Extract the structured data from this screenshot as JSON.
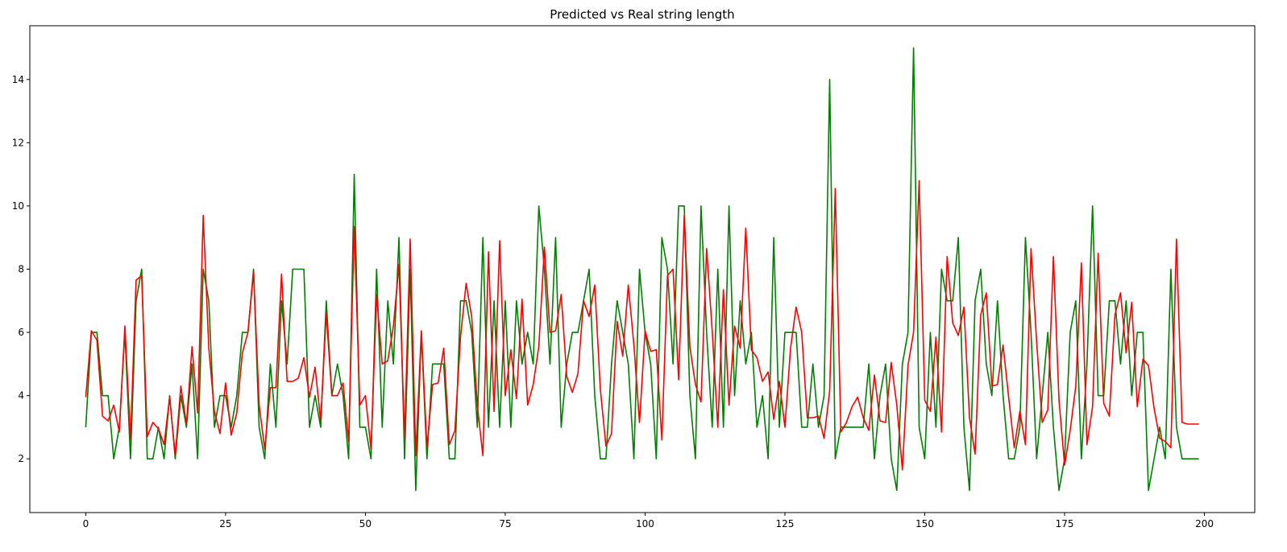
{
  "chart_data": {
    "type": "line",
    "title": "Predicted vs Real string length",
    "xlabel": "",
    "ylabel": "",
    "xlim": [
      -10,
      209
    ],
    "ylim": [
      0.3,
      15.7
    ],
    "xticks": [
      0,
      25,
      50,
      75,
      100,
      125,
      150,
      175,
      200
    ],
    "yticks": [
      2,
      4,
      6,
      8,
      10,
      12,
      14
    ],
    "grid": false,
    "legend": "none",
    "series": [
      {
        "color": "#008000",
        "values": [
          3,
          6,
          6,
          4,
          4,
          2,
          3,
          6,
          2,
          7,
          8,
          2,
          2,
          3,
          2,
          4,
          2,
          4,
          3,
          5,
          2,
          8,
          7,
          3,
          4,
          4,
          3,
          4,
          6,
          6,
          8,
          3,
          2,
          5,
          3,
          7,
          5,
          8,
          8,
          8,
          3,
          4,
          3,
          7,
          4,
          5,
          4,
          2,
          11,
          3,
          3,
          2,
          8,
          3,
          7,
          5,
          9,
          2,
          8,
          1,
          6,
          2,
          5,
          5,
          5,
          2,
          2,
          7,
          7,
          6,
          3,
          9,
          3,
          7,
          3,
          7,
          3,
          7,
          5,
          6,
          5,
          10,
          8,
          5,
          9,
          3,
          5,
          6,
          6,
          7,
          8,
          4,
          2,
          2,
          5,
          7,
          6,
          5,
          2,
          8,
          6,
          5,
          2,
          9,
          8,
          5,
          10,
          10,
          4,
          2,
          10,
          6,
          3,
          8,
          3,
          10,
          4,
          7,
          5,
          6,
          3,
          4,
          2,
          9,
          3,
          6,
          6,
          6,
          3,
          3,
          5,
          3,
          4,
          14,
          2,
          3,
          3,
          3,
          3,
          3,
          5,
          2,
          4,
          5,
          2,
          1,
          5,
          6,
          15,
          3,
          2,
          6,
          3,
          8,
          7,
          7,
          9,
          3,
          1,
          7,
          8,
          5,
          4,
          7,
          4,
          2,
          2,
          3,
          9,
          6,
          2,
          4,
          6,
          3,
          1,
          2,
          6,
          7,
          2,
          5,
          10,
          4,
          4,
          7,
          7,
          5,
          7,
          4,
          6,
          6,
          1,
          2,
          3,
          2,
          8,
          3,
          2,
          2,
          2,
          2
        ]
      },
      {
        "color": "#ff0000",
        "values": [
          3.95,
          6.05,
          5.75,
          3.35,
          3.2,
          3.7,
          2.85,
          6.2,
          2.6,
          7.65,
          7.8,
          2.7,
          3.15,
          2.95,
          2.45,
          3.95,
          2.1,
          4.3,
          3.1,
          5.55,
          3.45,
          9.7,
          5.5,
          3.5,
          2.8,
          4.4,
          2.75,
          3.45,
          5.35,
          6.0,
          7.9,
          3.7,
          2.3,
          4.25,
          4.25,
          7.85,
          4.45,
          4.45,
          4.55,
          5.2,
          3.95,
          4.9,
          3.2,
          6.6,
          4.0,
          4.0,
          4.4,
          2.55,
          9.35,
          3.7,
          4.0,
          2.3,
          7.2,
          5.0,
          5.1,
          6.2,
          8.15,
          2.65,
          8.95,
          2.1,
          6.05,
          2.35,
          4.35,
          4.4,
          5.5,
          2.45,
          2.9,
          5.85,
          7.55,
          6.5,
          3.7,
          2.1,
          8.55,
          3.5,
          8.9,
          4.0,
          5.45,
          3.9,
          7.05,
          3.7,
          4.35,
          5.55,
          8.7,
          6.0,
          6.05,
          7.2,
          4.6,
          4.1,
          4.7,
          7.0,
          6.5,
          7.5,
          4.2,
          2.4,
          2.8,
          6.35,
          5.25,
          7.5,
          5.6,
          3.15,
          6.05,
          5.4,
          5.45,
          2.6,
          7.8,
          8.0,
          4.5,
          9.7,
          5.55,
          4.35,
          3.8,
          8.65,
          6.05,
          3.0,
          7.35,
          3.7,
          6.2,
          5.5,
          9.3,
          5.45,
          5.2,
          4.45,
          4.75,
          3.25,
          4.45,
          3.0,
          5.5,
          6.8,
          6.0,
          3.3,
          3.3,
          3.35,
          2.65,
          4.15,
          10.55,
          2.85,
          3.15,
          3.65,
          3.95,
          3.3,
          2.9,
          4.65,
          3.2,
          3.15,
          5.05,
          3.7,
          1.65,
          4.95,
          6.0,
          10.8,
          3.85,
          3.5,
          5.85,
          2.85,
          8.4,
          6.3,
          5.9,
          6.8,
          3.3,
          2.15,
          6.55,
          7.25,
          4.3,
          4.35,
          5.6,
          3.95,
          2.35,
          3.5,
          2.45,
          8.65,
          5.7,
          3.15,
          3.55,
          8.4,
          3.85,
          1.8,
          2.9,
          4.3,
          8.2,
          2.45,
          3.65,
          8.5,
          3.75,
          3.35,
          6.55,
          7.25,
          5.35,
          6.95,
          3.65,
          5.15,
          4.95,
          3.6,
          2.65,
          2.55,
          2.35,
          8.95,
          3.15,
          3.1,
          3.1,
          3.1
        ]
      }
    ]
  }
}
